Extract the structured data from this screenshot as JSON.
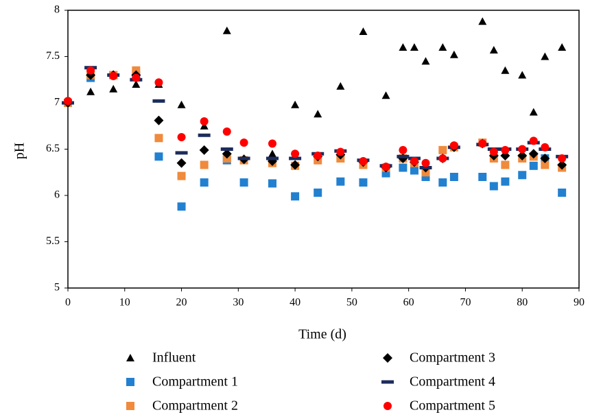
{
  "chart_data": {
    "type": "scatter",
    "x_label": "Time (d)",
    "y_label": "pH",
    "x": [
      0,
      4,
      8,
      12,
      16,
      20,
      24,
      28,
      31,
      36,
      40,
      44,
      48,
      52,
      56,
      59,
      61,
      63,
      66,
      68,
      73,
      75,
      77,
      80,
      82,
      84,
      87
    ],
    "series": [
      {
        "name": "Influent",
        "color": "#000000",
        "marker": "triangle",
        "values": [
          7.0,
          7.12,
          7.15,
          7.2,
          7.2,
          6.98,
          6.75,
          7.78,
          6.4,
          6.45,
          6.98,
          6.88,
          7.18,
          7.77,
          7.08,
          7.6,
          7.6,
          7.45,
          7.6,
          7.52,
          7.88,
          7.57,
          7.35,
          7.3,
          6.9,
          7.5,
          7.6
        ]
      },
      {
        "name": "Compartment 1",
        "color": "#2280d0",
        "marker": "square",
        "values": [
          7.0,
          7.27,
          7.3,
          7.3,
          6.42,
          5.88,
          6.14,
          6.38,
          6.14,
          6.13,
          5.99,
          6.03,
          6.15,
          6.14,
          6.24,
          6.3,
          6.27,
          6.2,
          6.14,
          6.2,
          6.2,
          6.1,
          6.15,
          6.22,
          6.32,
          6.4,
          6.03
        ]
      },
      {
        "name": "Compartment 2",
        "color": "#f08a3c",
        "marker": "square",
        "values": [
          7.0,
          7.3,
          7.3,
          7.35,
          6.62,
          6.21,
          6.33,
          6.4,
          6.38,
          6.35,
          6.32,
          6.38,
          6.4,
          6.33,
          6.3,
          6.4,
          6.35,
          6.25,
          6.49,
          6.52,
          6.57,
          6.4,
          6.33,
          6.4,
          6.42,
          6.33,
          6.3
        ]
      },
      {
        "name": "Compartment 3",
        "color": "#000000",
        "marker": "diamond",
        "values": [
          7.0,
          7.3,
          7.3,
          7.3,
          6.81,
          6.35,
          6.49,
          6.45,
          6.39,
          6.37,
          6.33,
          6.42,
          6.44,
          6.36,
          6.3,
          6.4,
          6.36,
          6.3,
          6.4,
          6.52,
          6.56,
          6.43,
          6.43,
          6.43,
          6.45,
          6.4,
          6.33
        ]
      },
      {
        "name": "Compartment 4",
        "color": "#1c2c5c",
        "marker": "dash",
        "values": [
          7.0,
          7.38,
          7.3,
          7.25,
          7.02,
          6.46,
          6.65,
          6.5,
          6.4,
          6.4,
          6.4,
          6.45,
          6.48,
          6.38,
          6.32,
          6.42,
          6.4,
          6.3,
          6.4,
          6.52,
          6.55,
          6.5,
          6.5,
          6.5,
          6.57,
          6.5,
          6.42
        ]
      },
      {
        "name": "Compartment 5",
        "color": "#ff0000",
        "marker": "circle",
        "values": [
          7.02,
          7.35,
          7.29,
          7.27,
          7.22,
          6.63,
          6.8,
          6.69,
          6.57,
          6.56,
          6.45,
          6.43,
          6.47,
          6.37,
          6.31,
          6.49,
          6.37,
          6.35,
          6.4,
          6.54,
          6.56,
          6.47,
          6.49,
          6.5,
          6.59,
          6.52,
          6.4
        ]
      }
    ],
    "xlim": [
      0,
      90
    ],
    "xticks": [
      0,
      10,
      20,
      30,
      40,
      50,
      60,
      70,
      80,
      90
    ],
    "ylim": [
      5,
      8
    ],
    "yticks": [
      5,
      5.5,
      6,
      6.5,
      7,
      7.5,
      8
    ],
    "legend": "bottom"
  }
}
